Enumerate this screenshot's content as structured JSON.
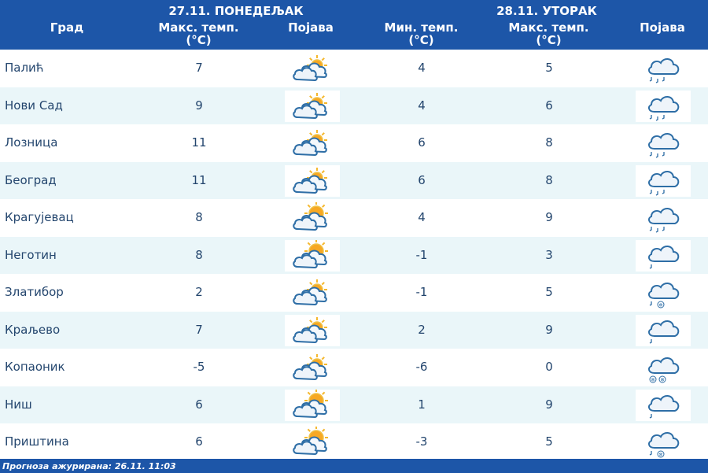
{
  "header": {
    "city_label": "Град",
    "day1": "27.11. ПОНЕДЕЉАК",
    "day2": "28.11. УТОРАК",
    "max_temp_line1": "Макс. темп.",
    "min_temp_line1": "Мин. темп.",
    "unit": "(°C)",
    "phenomenon": "Појава"
  },
  "rows": [
    {
      "city": "Палић",
      "d1_max": "7",
      "d1_icon": "partly-cloudy-icon",
      "d2_min": "4",
      "d2_max": "5",
      "d2_icon": "rain-icon"
    },
    {
      "city": "Нови Сад",
      "d1_max": "9",
      "d1_icon": "partly-cloudy-icon",
      "d2_min": "4",
      "d2_max": "6",
      "d2_icon": "rain-icon"
    },
    {
      "city": "Лозница",
      "d1_max": "11",
      "d1_icon": "partly-cloudy-icon",
      "d2_min": "6",
      "d2_max": "8",
      "d2_icon": "rain-icon"
    },
    {
      "city": "Београд",
      "d1_max": "11",
      "d1_icon": "partly-cloudy-icon",
      "d2_min": "6",
      "d2_max": "8",
      "d2_icon": "rain-icon"
    },
    {
      "city": "Крагујевац",
      "d1_max": "8",
      "d1_icon": "mostly-sunny-icon",
      "d2_min": "4",
      "d2_max": "9",
      "d2_icon": "rain-icon"
    },
    {
      "city": "Неготин",
      "d1_max": "8",
      "d1_icon": "mostly-sunny-icon",
      "d2_min": "-1",
      "d2_max": "3",
      "d2_icon": "light-rain-icon"
    },
    {
      "city": "Златибор",
      "d1_max": "2",
      "d1_icon": "partly-cloudy-icon",
      "d2_min": "-1",
      "d2_max": "5",
      "d2_icon": "rain-snow-icon"
    },
    {
      "city": "Краљево",
      "d1_max": "7",
      "d1_icon": "partly-cloudy-icon",
      "d2_min": "2",
      "d2_max": "9",
      "d2_icon": "light-rain-icon"
    },
    {
      "city": "Копаоник",
      "d1_max": "-5",
      "d1_icon": "partly-cloudy-icon",
      "d2_min": "-6",
      "d2_max": "0",
      "d2_icon": "snow-icon"
    },
    {
      "city": "Ниш",
      "d1_max": "6",
      "d1_icon": "mostly-sunny-icon",
      "d2_min": "1",
      "d2_max": "9",
      "d2_icon": "light-rain-icon"
    },
    {
      "city": "Приштина",
      "d1_max": "6",
      "d1_icon": "mostly-sunny-icon",
      "d2_min": "-3",
      "d2_max": "5",
      "d2_icon": "rain-snow-icon"
    }
  ],
  "footer": {
    "updated": "Прогноза ажурирана:  26.11. 11:03"
  },
  "colors": {
    "header": "#1d56a8",
    "row_alt": "#eaf6f9",
    "text": "#24466e",
    "sun": "#f5b82e",
    "cloud": "#2e6ea6"
  }
}
